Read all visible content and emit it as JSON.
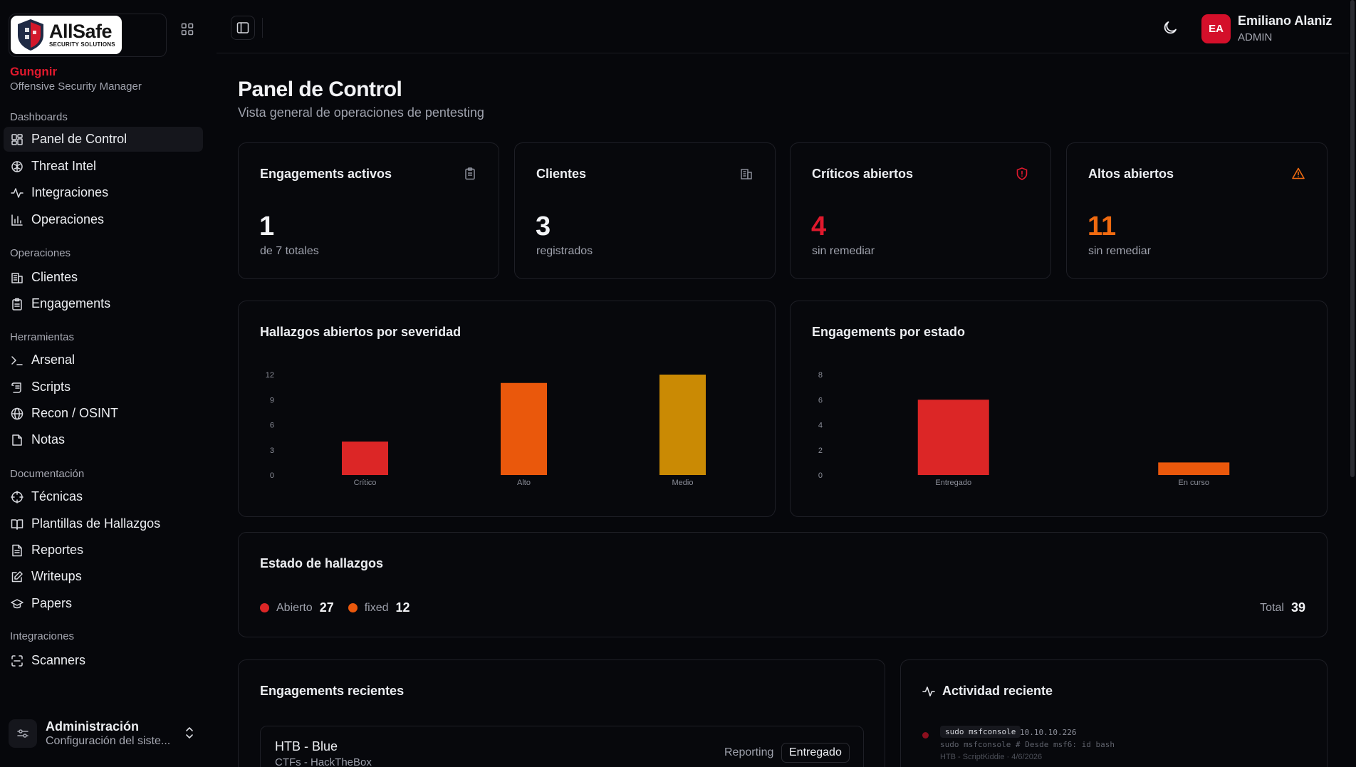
{
  "brand": {
    "logo_title": "AllSafe",
    "logo_subtitle": "SECURITY SOLUTIONS",
    "org_name": "Gungnir",
    "org_role": "Offensive Security Manager"
  },
  "sidebar": {
    "groups": [
      {
        "heading": "Dashboards",
        "items": [
          {
            "label": "Panel de Control",
            "icon": "dashboard-icon",
            "active": true
          },
          {
            "label": "Threat Intel",
            "icon": "brain-icon"
          },
          {
            "label": "Integraciones",
            "icon": "activity-icon"
          },
          {
            "label": "Operaciones",
            "icon": "bar-chart-icon"
          }
        ]
      },
      {
        "heading": "Operaciones",
        "items": [
          {
            "label": "Clientes",
            "icon": "building-icon"
          },
          {
            "label": "Engagements",
            "icon": "clipboard-icon"
          }
        ]
      },
      {
        "heading": "Herramientas",
        "items": [
          {
            "label": "Arsenal",
            "icon": "terminal-icon"
          },
          {
            "label": "Scripts",
            "icon": "scroll-icon"
          },
          {
            "label": "Recon / OSINT",
            "icon": "globe-icon"
          },
          {
            "label": "Notas",
            "icon": "sticky-note-icon"
          }
        ]
      },
      {
        "heading": "Documentación",
        "items": [
          {
            "label": "Técnicas",
            "icon": "crosshair-icon"
          },
          {
            "label": "Plantillas de Hallazgos",
            "icon": "book-open-icon"
          },
          {
            "label": "Reportes",
            "icon": "file-text-icon"
          },
          {
            "label": "Writeups",
            "icon": "edit-icon"
          },
          {
            "label": "Papers",
            "icon": "graduation-cap-icon"
          }
        ]
      },
      {
        "heading": "Integraciones",
        "items": [
          {
            "label": "Scanners",
            "icon": "scan-icon"
          }
        ]
      }
    ],
    "admin": {
      "title": "Administración",
      "subtitle": "Configuración del siste..."
    }
  },
  "user": {
    "initials": "EA",
    "name": "Emiliano Alaniz",
    "role": "ADMIN"
  },
  "page": {
    "title": "Panel de Control",
    "subtitle": "Vista general de operaciones de pentesting"
  },
  "stats": [
    {
      "label": "Engagements activos",
      "value": "1",
      "sub": "de 7 totales",
      "color": "#f2f3f6",
      "icon": "clipboard-icon"
    },
    {
      "label": "Clientes",
      "value": "3",
      "sub": "registrados",
      "color": "#f2f3f6",
      "icon": "building-icon"
    },
    {
      "label": "Críticos abiertos",
      "value": "4",
      "sub": "sin remediar",
      "color": "#e0192d",
      "icon": "shield-alert-icon"
    },
    {
      "label": "Altos abiertos",
      "value": "11",
      "sub": "sin remediar",
      "color": "#ef6a10",
      "icon": "triangle-alert-icon"
    }
  ],
  "chart_data": [
    {
      "type": "bar",
      "title": "Hallazgos abiertos por severidad",
      "categories": [
        "Crítico",
        "Alto",
        "Medio"
      ],
      "values": [
        4,
        11,
        12
      ],
      "colors": [
        "#dc2626",
        "#ea580c",
        "#ca8a04"
      ],
      "yticks": [
        0,
        3,
        6,
        9,
        12
      ],
      "ylim": [
        0,
        12
      ]
    },
    {
      "type": "bar",
      "title": "Engagements por estado",
      "categories": [
        "Entregado",
        "En curso"
      ],
      "values": [
        6,
        1
      ],
      "colors": [
        "#dc2626",
        "#ea580c"
      ],
      "yticks": [
        0,
        2,
        4,
        6,
        8
      ],
      "ylim": [
        0,
        8
      ]
    }
  ],
  "findings_status": {
    "title": "Estado de hallazgos",
    "items": [
      {
        "label": "Abierto",
        "count": "27",
        "color": "#dc2626"
      },
      {
        "label": "fixed",
        "count": "12",
        "color": "#ea580c"
      }
    ],
    "total_label": "Total",
    "total": "39"
  },
  "recent_engagements": {
    "title": "Engagements recientes",
    "items": [
      {
        "name": "HTB - Blue",
        "client": "CTFs - HackTheBox",
        "phase": "Reporting",
        "status": "Entregado"
      }
    ]
  },
  "recent_activity": {
    "title": "Actividad reciente",
    "items": [
      {
        "command": "sudo msfconsole",
        "target": "10.10.10.226",
        "line": "sudo msfconsole # Desde msf6: id bash",
        "meta": "HTB - ScriptKiddie · 4/6/2026"
      }
    ]
  }
}
